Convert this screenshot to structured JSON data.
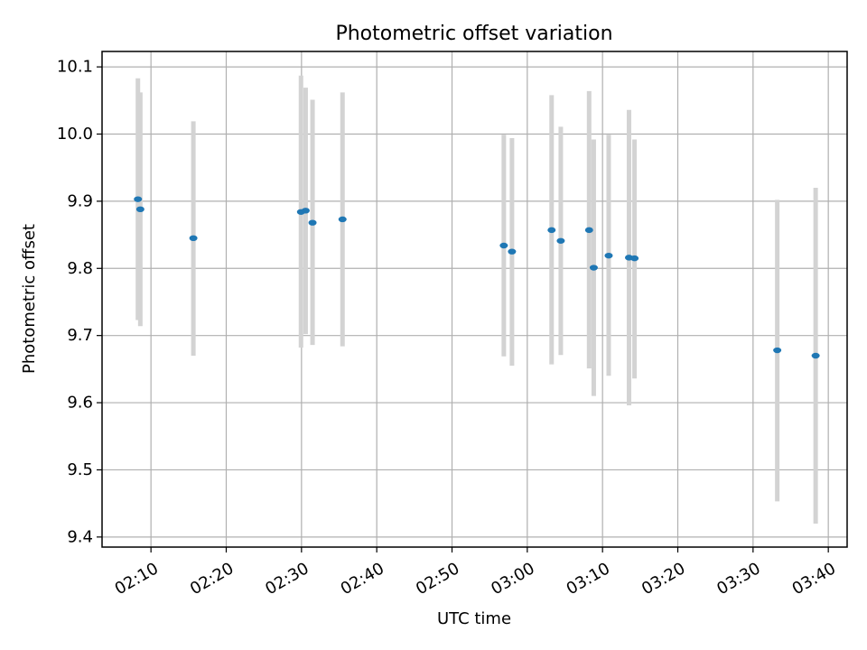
{
  "chart_data": {
    "type": "scatter",
    "title": "Photometric offset variation",
    "xlabel": "UTC time",
    "ylabel": "Photometric offset",
    "x_unit": "UTC time (HH:MM)",
    "xlim": [
      "02:03:30",
      "03:42:30"
    ],
    "ylim": [
      9.385,
      10.123
    ],
    "x_ticks": [
      "02:10",
      "02:20",
      "02:30",
      "02:40",
      "02:50",
      "03:00",
      "03:10",
      "03:20",
      "03:30",
      "03:40"
    ],
    "y_ticks": [
      "9.4",
      "9.5",
      "9.6",
      "9.7",
      "9.8",
      "9.9",
      "10.0",
      "10.1"
    ],
    "grid": true,
    "colors": {
      "point": "#1f77b4",
      "errorbar": "#d3d3d3",
      "grid": "#b0b0b0"
    },
    "series": [
      {
        "points": [
          {
            "x": "02:08:16",
            "y": 9.903,
            "ylow": 9.723,
            "yhigh": 10.083
          },
          {
            "x": "02:08:35",
            "y": 9.888,
            "ylow": 9.714,
            "yhigh": 10.062
          },
          {
            "x": "02:15:38",
            "y": 9.845,
            "ylow": 9.67,
            "yhigh": 10.019
          },
          {
            "x": "02:29:56",
            "y": 9.884,
            "ylow": 9.682,
            "yhigh": 10.087
          },
          {
            "x": "02:30:33",
            "y": 9.886,
            "ylow": 9.702,
            "yhigh": 10.069
          },
          {
            "x": "02:31:28",
            "y": 9.868,
            "ylow": 9.686,
            "yhigh": 10.051
          },
          {
            "x": "02:35:27",
            "y": 9.873,
            "ylow": 9.684,
            "yhigh": 10.062
          },
          {
            "x": "02:56:53",
            "y": 9.834,
            "ylow": 9.669,
            "yhigh": 9.999
          },
          {
            "x": "02:57:58",
            "y": 9.825,
            "ylow": 9.655,
            "yhigh": 9.994
          },
          {
            "x": "03:03:14",
            "y": 9.857,
            "ylow": 9.657,
            "yhigh": 10.058
          },
          {
            "x": "03:04:27",
            "y": 9.841,
            "ylow": 9.671,
            "yhigh": 10.011
          },
          {
            "x": "03:08:13",
            "y": 9.857,
            "ylow": 9.651,
            "yhigh": 10.064
          },
          {
            "x": "03:08:50",
            "y": 9.801,
            "ylow": 9.61,
            "yhigh": 9.992
          },
          {
            "x": "03:10:49",
            "y": 9.819,
            "ylow": 9.64,
            "yhigh": 9.999
          },
          {
            "x": "03:13:31",
            "y": 9.816,
            "ylow": 9.596,
            "yhigh": 10.036
          },
          {
            "x": "03:14:15",
            "y": 9.815,
            "ylow": 9.636,
            "yhigh": 9.992
          },
          {
            "x": "03:33:13",
            "y": 9.678,
            "ylow": 9.453,
            "yhigh": 9.902
          },
          {
            "x": "03:38:19",
            "y": 9.67,
            "ylow": 9.42,
            "yhigh": 9.92
          }
        ]
      }
    ]
  }
}
